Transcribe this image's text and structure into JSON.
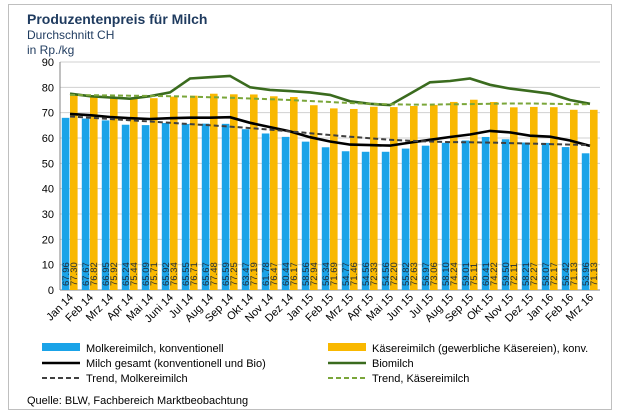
{
  "chart_data": {
    "type": "bar",
    "title": "Produzentenpreis für Milch",
    "subtitle": "Durchschnitt CH",
    "ylabel": "in Rp./kg",
    "ylim": [
      0,
      90
    ],
    "yticks": [
      0,
      10,
      20,
      30,
      40,
      50,
      60,
      70,
      80,
      90
    ],
    "categories": [
      "Jan 14",
      "Feb 14",
      "Mrz 14",
      "Apr 14",
      "Mai 14",
      "Juni 14",
      "Jul 14",
      "Aug 14",
      "Sep 14",
      "Okt 14",
      "Nov 14",
      "Dez 14",
      "Jan 15",
      "Feb 15",
      "Mrz 15",
      "Apr 15",
      "Mai 15",
      "Jun 15",
      "Jul 15",
      "Aug 15",
      "Sep 15",
      "Okt 15",
      "Nov 15",
      "Dez 15",
      "Jan 16",
      "Feb 16",
      "Mrz 16"
    ],
    "series": [
      {
        "name": "Molkereimilch, konventionell",
        "kind": "bar",
        "color": "#1aa3e8",
        "values": [
          67.96,
          67.67,
          66.95,
          65.24,
          65.09,
          65.92,
          65.55,
          65.67,
          65.59,
          63.47,
          61.78,
          60.44,
          58.56,
          56.34,
          54.77,
          54.56,
          54.56,
          55.82,
          56.97,
          58.1,
          59.01,
          60.41,
          59.5,
          58.21,
          58.07,
          56.42,
          53.96
        ]
      },
      {
        "name": "Käsereimilch (gewerbliche Käsereien), konv.",
        "kind": "bar",
        "color": "#f9b800",
        "values": [
          77.3,
          76.82,
          75.92,
          75.44,
          75.71,
          76.34,
          76.71,
          77.48,
          77.25,
          77.19,
          76.47,
          76.17,
          72.94,
          71.69,
          71.46,
          72.33,
          72.2,
          72.63,
          73.06,
          74.24,
          75.11,
          74.22,
          72.11,
          72.27,
          72.17,
          71.13,
          71.13
        ]
      },
      {
        "name": "Milch gesamt (konventionell und Bio)",
        "kind": "line",
        "color": "#000000",
        "values": [
          69.5,
          69.0,
          68.3,
          67.8,
          67.5,
          67.8,
          68.0,
          68.0,
          68.2,
          66.0,
          64.3,
          62.6,
          60.3,
          58.6,
          57.4,
          57.2,
          57.0,
          58.2,
          59.3,
          60.4,
          61.4,
          62.8,
          62.2,
          60.9,
          60.5,
          59.0,
          56.9
        ]
      },
      {
        "name": "Biomilch",
        "kind": "line",
        "color": "#3a6b1e",
        "values": [
          77.5,
          76.5,
          76.0,
          75.5,
          76.5,
          78.0,
          83.5,
          84.0,
          84.5,
          80.0,
          79.0,
          78.5,
          78.0,
          77.0,
          74.5,
          73.5,
          73.0,
          77.5,
          82.0,
          82.5,
          83.5,
          81.0,
          79.5,
          78.5,
          77.5,
          75.0,
          73.5
        ]
      },
      {
        "name": "Trend, Molkereimilch",
        "kind": "trend",
        "color": "#404040",
        "values": [
          68.5,
          68.0,
          67.5,
          67.0,
          66.5,
          66.0,
          65.5,
          65.0,
          64.5,
          63.9,
          63.3,
          62.6,
          61.9,
          61.2,
          60.5,
          59.9,
          59.3,
          58.9,
          58.6,
          58.4,
          58.3,
          58.2,
          58.0,
          57.8,
          57.6,
          57.4,
          57.2
        ]
      },
      {
        "name": "Trend, Käsereimilch",
        "kind": "trend",
        "color": "#7aa63a",
        "values": [
          77.0,
          76.9,
          76.8,
          76.7,
          76.6,
          76.5,
          76.3,
          76.1,
          75.9,
          75.6,
          75.3,
          75.0,
          74.6,
          74.2,
          73.8,
          73.5,
          73.3,
          73.2,
          73.2,
          73.3,
          73.4,
          73.5,
          73.6,
          73.6,
          73.5,
          73.4,
          73.3
        ]
      }
    ],
    "legend_position": "bottom",
    "grid": true
  },
  "legend": [
    {
      "label": "Molkereimilch, konventionell",
      "swatch": "bar",
      "color": "#1aa3e8"
    },
    {
      "label": "Käsereimilch (gewerbliche Käsereien), konv.",
      "swatch": "bar",
      "color": "#f9b800"
    },
    {
      "label": "Milch gesamt (konventionell und Bio)",
      "swatch": "line",
      "color": "#000000"
    },
    {
      "label": "Biomilch",
      "swatch": "line",
      "color": "#3a6b1e"
    },
    {
      "label": "Trend, Molkereimilch",
      "swatch": "dash",
      "color": "#404040"
    },
    {
      "label": "Trend, Käsereimilch",
      "swatch": "dash",
      "color": "#7aa63a"
    }
  ],
  "source": "Quelle: BLW, Fachbereich Marktbeobachtung"
}
